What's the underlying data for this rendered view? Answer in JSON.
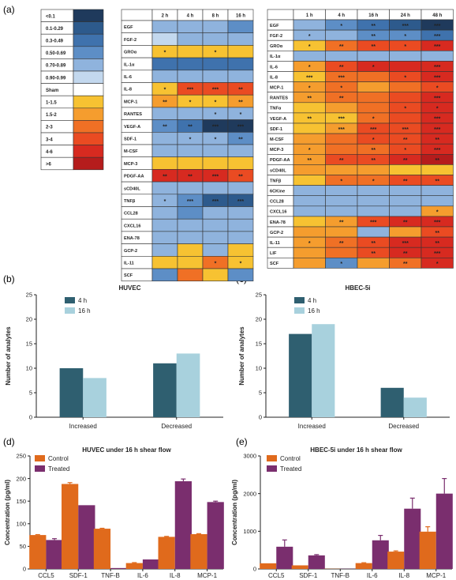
{
  "panel_letters": [
    "(a)",
    "(b)",
    "(c)",
    "(d)",
    "(e)"
  ],
  "colors": {
    "dark_teal": "#2f5f70",
    "light_teal": "#a8d1dd",
    "control_orange": "#e06a1c",
    "treated_purple": "#7a2e6e"
  },
  "legend_scale": {
    "labels": [
      "<0.1",
      "0.1-0.29",
      "0.3-0.49",
      "0.50-0.69",
      "0.70-0.89",
      "0.90-0.99",
      "Sham",
      "1-1.5",
      "1.5-2",
      "2-3",
      "3-4",
      "4-6",
      ">6"
    ],
    "colors": [
      "#1f3a5c",
      "#2d5a8c",
      "#3f72ad",
      "#5d8ec6",
      "#8fb3dd",
      "#c3d8ee",
      "#ffffff",
      "#f7c232",
      "#f59d2e",
      "#f07025",
      "#ea4b22",
      "#d72a20",
      "#b51c1c"
    ]
  },
  "heatmap_huvec": {
    "title": "HUVEC",
    "columns": [
      "2 h",
      "4 h",
      "8 h",
      "16 h"
    ],
    "rows": [
      "EGF",
      "FGF-2",
      "GROα",
      "IL-1α",
      "IL-6",
      "IL-8",
      "MCP-1",
      "RANTES",
      "VEGF-A",
      "SDF-1",
      "M-CSF",
      "MCP-3",
      "PDGF-AA",
      "sCD40L",
      "TNFβ",
      "CCL28",
      "CXCL16",
      "ENA-78",
      "GCP-2",
      "IL-11",
      "SCF"
    ],
    "cells": [
      [
        4,
        4,
        4,
        3
      ],
      [
        5,
        4,
        4,
        4
      ],
      [
        7,
        7,
        7,
        7
      ],
      [
        2,
        2,
        2,
        2
      ],
      [
        4,
        4,
        4,
        4
      ],
      [
        7,
        10,
        10,
        10
      ],
      [
        8,
        7,
        7,
        8
      ],
      [
        4,
        4,
        4,
        4
      ],
      [
        3,
        2,
        0,
        0
      ],
      [
        4,
        4,
        4,
        3
      ],
      [
        4,
        4,
        4,
        4
      ],
      [
        7,
        7,
        7,
        7
      ],
      [
        11,
        11,
        11,
        10
      ],
      [
        4,
        4,
        4,
        4
      ],
      [
        4,
        3,
        1,
        1
      ],
      [
        4,
        3,
        4,
        4
      ],
      [
        4,
        4,
        4,
        4
      ],
      [
        4,
        4,
        4,
        4
      ],
      [
        4,
        7,
        4,
        7
      ],
      [
        7,
        7,
        9,
        7
      ],
      [
        3,
        9,
        7,
        3
      ]
    ],
    "stars": [
      [
        "",
        "",
        "",
        ""
      ],
      [
        "",
        "",
        "",
        ""
      ],
      [
        "*",
        "",
        "*",
        ""
      ],
      [
        "",
        "",
        "",
        ""
      ],
      [
        "",
        "",
        "",
        ""
      ],
      [
        "*",
        "***",
        "***",
        "**"
      ],
      [
        "**",
        "*",
        "*",
        "**"
      ],
      [
        "",
        "",
        "*",
        "*"
      ],
      [
        "**",
        "**",
        "***",
        "***"
      ],
      [
        "",
        "*",
        "*",
        "**"
      ],
      [
        "",
        "",
        "",
        ""
      ],
      [
        "",
        "",
        "",
        ""
      ],
      [
        "**",
        "**",
        "***",
        "**"
      ],
      [
        "",
        "",
        "",
        ""
      ],
      [
        "*",
        "***",
        "***",
        "***"
      ],
      [
        "",
        "",
        "",
        ""
      ],
      [
        "",
        "",
        "",
        ""
      ],
      [
        "",
        "",
        "",
        ""
      ],
      [
        "",
        "",
        "",
        ""
      ],
      [
        "",
        "",
        "*",
        "*"
      ],
      [
        "",
        "",
        "",
        ""
      ]
    ]
  },
  "heatmap_hbec": {
    "title": "HBEC-5i",
    "columns": [
      "1 h",
      "4 h",
      "16 h",
      "24 h",
      "48 h"
    ],
    "rows": [
      "EGF",
      "FGF-2",
      "GROα",
      "IL-1α",
      "IL-6",
      "IL-8",
      "MCP-1",
      "RANTES",
      "TNFα",
      "VEGF-A",
      "SDF-1",
      "M-CSF",
      "MCP-3",
      "PDGF-AA",
      "sCD40L",
      "TNFβ",
      "6CKine",
      "CCL28",
      "CXCL16",
      "ENA-78",
      "GCP-2",
      "IL-11",
      "LIF",
      "SCF"
    ],
    "cells": [
      [
        4,
        3,
        2,
        1,
        0
      ],
      [
        4,
        4,
        3,
        3,
        2
      ],
      [
        7,
        9,
        10,
        10,
        11
      ],
      [
        4,
        4,
        4,
        4,
        4
      ],
      [
        8,
        10,
        11,
        11,
        11
      ],
      [
        7,
        9,
        9,
        10,
        11
      ],
      [
        8,
        9,
        8,
        9,
        10
      ],
      [
        8,
        9,
        9,
        10,
        11
      ],
      [
        7,
        8,
        9,
        10,
        11
      ],
      [
        7,
        7,
        9,
        10,
        11
      ],
      [
        7,
        8,
        10,
        10,
        11
      ],
      [
        8,
        9,
        10,
        10,
        11
      ],
      [
        8,
        9,
        9,
        10,
        11
      ],
      [
        8,
        10,
        10,
        11,
        12
      ],
      [
        8,
        8,
        8,
        7,
        7
      ],
      [
        7,
        9,
        9,
        10,
        10
      ],
      [
        4,
        4,
        4,
        4,
        4
      ],
      [
        4,
        4,
        4,
        4,
        4
      ],
      [
        4,
        4,
        4,
        4,
        8
      ],
      [
        7,
        8,
        10,
        11,
        11
      ],
      [
        8,
        8,
        4,
        8,
        10
      ],
      [
        8,
        9,
        10,
        11,
        11
      ],
      [
        8,
        9,
        10,
        11,
        11
      ],
      [
        8,
        3,
        8,
        9,
        11
      ]
    ],
    "stars": [
      [
        "",
        "*",
        "**",
        "***",
        "***"
      ],
      [
        "*",
        "",
        "**",
        "*",
        "***"
      ],
      [
        "*",
        "**",
        "**",
        "*",
        "***"
      ],
      [
        "",
        "",
        "",
        "",
        ""
      ],
      [
        "*",
        "**",
        "*",
        "",
        "***"
      ],
      [
        "***",
        "***",
        "",
        "*",
        "***"
      ],
      [
        "*",
        "*",
        "",
        "",
        "*"
      ],
      [
        "**",
        "**",
        "",
        "",
        "***"
      ],
      [
        "",
        "",
        "",
        "*",
        "*"
      ],
      [
        "**",
        "***",
        "*",
        "",
        "***"
      ],
      [
        "",
        "***",
        "***",
        "***",
        "***"
      ],
      [
        "",
        "",
        "*",
        "**",
        "**"
      ],
      [
        "*",
        "",
        "**",
        "*",
        "***"
      ],
      [
        "**",
        "**",
        "**",
        "**",
        "**"
      ],
      [
        "",
        "",
        "",
        "",
        ""
      ],
      [
        "",
        "*",
        "*",
        "**",
        "**"
      ],
      [
        "",
        "",
        "",
        "",
        ""
      ],
      [
        "",
        "",
        "",
        "",
        ""
      ],
      [
        "",
        "",
        "",
        "",
        "*"
      ],
      [
        "",
        "**",
        "***",
        "**",
        "***"
      ],
      [
        "",
        "",
        "",
        "",
        "**"
      ],
      [
        "*",
        "**",
        "**",
        "***",
        "**"
      ],
      [
        "",
        "",
        "**",
        "**",
        "***"
      ],
      [
        "",
        "*",
        "",
        "**",
        "*"
      ]
    ]
  },
  "chart_data": [
    {
      "type": "bar",
      "title": "HUVEC",
      "categories": [
        "Increased",
        "Decreased"
      ],
      "series": [
        {
          "name": "4 h",
          "values": [
            10,
            11
          ]
        },
        {
          "name": "16 h",
          "values": [
            8,
            13
          ]
        }
      ],
      "xlabel": "",
      "ylabel": "Number of analytes",
      "ylim": [
        0,
        25
      ],
      "yticks": [
        "0",
        "5",
        "10",
        "15",
        "20",
        "25"
      ]
    },
    {
      "type": "bar",
      "title": "HBEC-5i",
      "categories": [
        "Increased",
        "Decreased"
      ],
      "series": [
        {
          "name": "4 h",
          "values": [
            17,
            6
          ]
        },
        {
          "name": "16 h",
          "values": [
            19,
            4
          ]
        }
      ],
      "xlabel": "",
      "ylabel": "Number of analytes",
      "ylim": [
        0,
        25
      ],
      "yticks": [
        "0",
        "5",
        "10",
        "15",
        "20",
        "25"
      ]
    },
    {
      "type": "bar",
      "title": "HUVEC under 16 h shear flow",
      "categories": [
        "CCL5",
        "SDF-1",
        "TNF-B",
        "IL-6",
        "IL-8",
        "MCP-1"
      ],
      "series": [
        {
          "name": "Control",
          "values": [
            75,
            188,
            89,
            13,
            71,
            77
          ],
          "errors": [
            1,
            3,
            1,
            1,
            1,
            1
          ]
        },
        {
          "name": "Treated",
          "values": [
            64,
            141,
            2,
            21,
            194,
            148
          ],
          "errors": [
            3,
            0,
            0,
            0,
            5,
            2
          ]
        }
      ],
      "xlabel": "",
      "ylabel": "Concentration (pg/ml)",
      "ylim": [
        0,
        250
      ],
      "yticks": [
        "0",
        "50",
        "100",
        "150",
        "200",
        "250"
      ]
    },
    {
      "type": "bar",
      "title": "HBEC-5i under 16 h shear flow",
      "categories": [
        "CCL5",
        "SDF-1",
        "TNF-B",
        "IL-6",
        "IL-8",
        "MCP-1"
      ],
      "series": [
        {
          "name": "Control",
          "values": [
            150,
            95,
            5,
            155,
            460,
            990
          ],
          "errors": [
            0,
            0,
            0,
            10,
            20,
            130
          ]
        },
        {
          "name": "Treated",
          "values": [
            590,
            360,
            5,
            760,
            1600,
            2000
          ],
          "errors": [
            180,
            20,
            0,
            130,
            280,
            400
          ]
        }
      ],
      "xlabel": "",
      "ylabel": "Concentration (pg/ml)",
      "ylim": [
        0,
        3000
      ],
      "yticks": [
        "0",
        "1000",
        "2000",
        "3000"
      ]
    }
  ]
}
